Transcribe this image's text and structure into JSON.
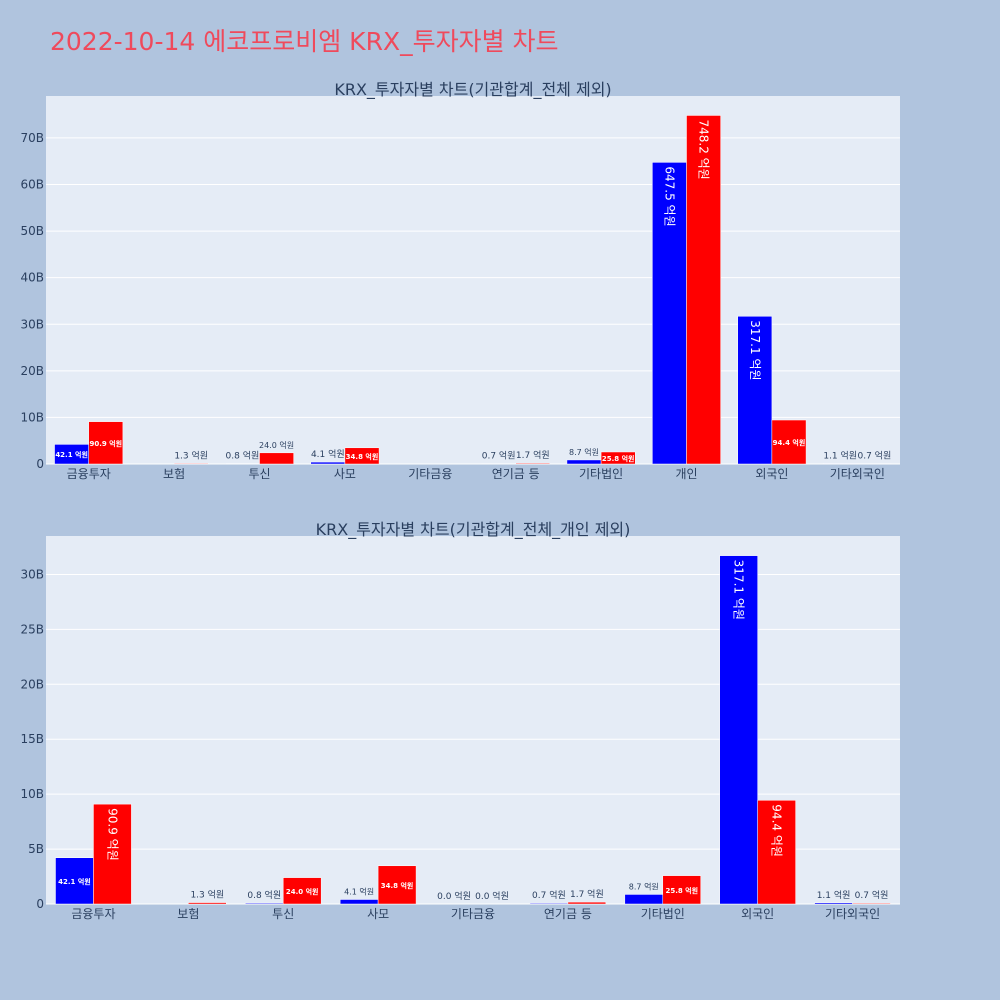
{
  "page": {
    "title": "2022-10-14 에코프로비엠 KRX_투자자별 차트"
  },
  "colors": {
    "background": "#b0c4de",
    "plot_background": "#e5ecf6",
    "title": "#ef4a5c",
    "series_blue": "#0000ff",
    "series_red": "#ff0000"
  },
  "chart_data": [
    {
      "type": "bar",
      "title": "KRX_투자자별 차트(기관합계_전체 제외)",
      "categories": [
        "금융투자",
        "보험",
        "투신",
        "사모",
        "기타금융",
        "연기금 등",
        "기타법인",
        "개인",
        "외국인",
        "기타외국인"
      ],
      "ylim": [
        0,
        79000000000
      ],
      "yticks": [
        0,
        10000000000,
        20000000000,
        30000000000,
        40000000000,
        50000000000,
        60000000000,
        70000000000
      ],
      "ytick_labels": [
        "0",
        "10B",
        "20B",
        "30B",
        "40B",
        "50B",
        "60B",
        "70B"
      ],
      "series": [
        {
          "color": "#0000ff",
          "values": [
            4210000000,
            0,
            80000000,
            410000000,
            0,
            70000000,
            870000000,
            64750000000,
            31710000000,
            110000000
          ],
          "labels": [
            "42.1 억원",
            "",
            "0.8 억원",
            "4.1 억원",
            "",
            "0.7 억원",
            "8.7 억원",
            "647.5 억원",
            "317.1 억원",
            "1.1 억원"
          ]
        },
        {
          "color": "#ff0000",
          "values": [
            9090000000,
            130000000,
            2400000000,
            3480000000,
            0,
            170000000,
            2580000000,
            74820000000,
            9440000000,
            70000000
          ],
          "labels": [
            "90.9 억원",
            "1.3 억원",
            "24.0 억원",
            "34.8 억원",
            "",
            "1.7 억원",
            "25.8 억원",
            "748.2 억원",
            "94.4 억원",
            "0.7 억원"
          ]
        }
      ]
    },
    {
      "type": "bar",
      "title": "KRX_투자자별 차트(기관합계_전체_개인 제외)",
      "categories": [
        "금융투자",
        "보험",
        "투신",
        "사모",
        "기타금융",
        "연기금 등",
        "기타법인",
        "외국인",
        "기타외국인"
      ],
      "ylim": [
        0,
        33500000000
      ],
      "yticks": [
        0,
        5000000000,
        10000000000,
        15000000000,
        20000000000,
        25000000000,
        30000000000
      ],
      "ytick_labels": [
        "0",
        "5B",
        "10B",
        "15B",
        "20B",
        "25B",
        "30B"
      ],
      "series": [
        {
          "color": "#0000ff",
          "values": [
            4210000000,
            0,
            80000000,
            410000000,
            0,
            70000000,
            870000000,
            31710000000,
            110000000
          ],
          "labels": [
            "42.1 억원",
            "",
            "0.8 억원",
            "4.1 억원",
            "0.0 억원",
            "0.7 억원",
            "8.7 억원",
            "317.1 억원",
            "1.1 억원"
          ]
        },
        {
          "color": "#ff0000",
          "values": [
            9090000000,
            130000000,
            2400000000,
            3480000000,
            0,
            170000000,
            2580000000,
            9440000000,
            70000000
          ],
          "labels": [
            "90.9 억원",
            "1.3 억원",
            "24.0 억원",
            "34.8 억원",
            "0.0 억원",
            "1.7 억원",
            "25.8 억원",
            "94.4 억원",
            "0.7 억원"
          ]
        }
      ]
    }
  ]
}
